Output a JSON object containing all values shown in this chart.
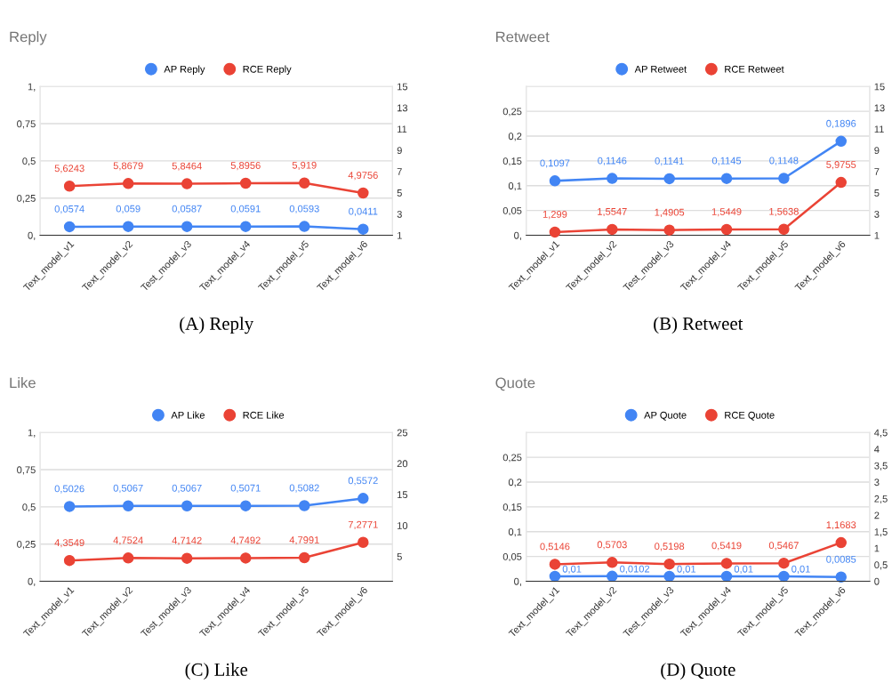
{
  "chart_data": [
    {
      "type": "line",
      "title": "Reply",
      "categories": [
        "Text_model_v1",
        "Text_model_v2",
        "Test_model_v3",
        "Text_model_v4",
        "Text_model_v5",
        "Text_model_v6"
      ],
      "series": [
        {
          "name": "AP Reply",
          "color": "#4285f4",
          "values": [
            0.0574,
            0.059,
            0.0587,
            0.0591,
            0.0593,
            0.0411
          ],
          "value_labels": [
            "0,0574",
            "0,059",
            "0,0587",
            "0,0591",
            "0,0593",
            "0,0411"
          ]
        },
        {
          "name": "RCE Reply",
          "color": "#ea4335",
          "axis": "y2",
          "values": [
            5.6243,
            5.8679,
            5.8464,
            5.8956,
            5.919,
            4.9756
          ],
          "value_labels": [
            "5,6243",
            "5,8679",
            "5,8464",
            "5,8956",
            "5,919",
            "4,9756"
          ]
        }
      ],
      "ylim": [
        0,
        1
      ],
      "yticks": [
        {
          "value": 0,
          "label": "0,"
        },
        {
          "value": 0.25,
          "label": "0,25"
        },
        {
          "value": 0.5,
          "label": "0,5"
        },
        {
          "value": 0.75,
          "label": "0,75"
        },
        {
          "value": 1,
          "label": "1,"
        }
      ],
      "y2lim": [
        1,
        15
      ],
      "y2ticks": [
        1,
        3,
        5,
        7,
        9,
        11,
        13,
        15
      ],
      "grid": "y",
      "legend": "top",
      "marker": "circle",
      "line_style": "solid",
      "annotations": [
        "(A) Reply"
      ]
    },
    {
      "type": "line",
      "title": "Retweet",
      "categories": [
        "Text_model_v1",
        "Text_model_v2",
        "Test_model_v3",
        "Text_model_v4",
        "Text_model_v5",
        "Text_model_v6"
      ],
      "series": [
        {
          "name": "AP Retweet",
          "color": "#4285f4",
          "values": [
            0.1097,
            0.1146,
            0.1141,
            0.1145,
            0.1148,
            0.1896
          ],
          "value_labels": [
            "0,1097",
            "0,1146",
            "0,1141",
            "0,1145",
            "0,1148",
            "0,1896"
          ]
        },
        {
          "name": "RCE Retweet",
          "color": "#ea4335",
          "axis": "y2",
          "values": [
            1.299,
            1.5547,
            1.4905,
            1.5449,
            1.5638,
            5.9755
          ],
          "value_labels": [
            "1,299",
            "1,5547",
            "1,4905",
            "1,5449",
            "1,5638",
            "5,9755"
          ]
        }
      ],
      "ylim": [
        0,
        0.3
      ],
      "yticks": [
        {
          "value": 0,
          "label": "0,"
        },
        {
          "value": 0.05,
          "label": "0,05"
        },
        {
          "value": 0.1,
          "label": "0,1"
        },
        {
          "value": 0.15,
          "label": "0,15"
        },
        {
          "value": 0.2,
          "label": "0,2"
        },
        {
          "value": 0.25,
          "label": "0,25"
        }
      ],
      "y2lim": [
        1,
        15
      ],
      "y2ticks": [
        1,
        3,
        5,
        7,
        9,
        11,
        13,
        15
      ],
      "grid": "y",
      "legend": "top",
      "marker": "circle",
      "line_style": "solid",
      "annotations": [
        "(B) Retweet"
      ]
    },
    {
      "type": "line",
      "title": "Like",
      "categories": [
        "Text_model_v1",
        "Text_model_v2",
        "Test_model_v3",
        "Text_model_v4",
        "Text_model_v5",
        "Text_model_v6"
      ],
      "series": [
        {
          "name": "AP Like",
          "color": "#4285f4",
          "values": [
            0.5026,
            0.5067,
            0.5067,
            0.5071,
            0.5082,
            0.5572
          ],
          "value_labels": [
            "0,5026",
            "0,5067",
            "0,5067",
            "0,5071",
            "0,5082",
            "0,5572"
          ]
        },
        {
          "name": "RCE Like",
          "color": "#ea4335",
          "axis": "y2",
          "values": [
            4.3549,
            4.7524,
            4.7142,
            4.7492,
            4.7991,
            7.2771
          ],
          "value_labels": [
            "4,3549",
            "4,7524",
            "4,7142",
            "4,7492",
            "4,7991",
            "7,2771"
          ]
        }
      ],
      "ylim": [
        0,
        1
      ],
      "yticks": [
        {
          "value": 0,
          "label": "0,"
        },
        {
          "value": 0.25,
          "label": "0,25"
        },
        {
          "value": 0.5,
          "label": "0,5"
        },
        {
          "value": 0.75,
          "label": "0,75"
        },
        {
          "value": 1,
          "label": "1,"
        }
      ],
      "y2lim": [
        1,
        25
      ],
      "y2ticks": [
        5,
        10,
        15,
        20,
        25
      ],
      "grid": "y",
      "legend": "top",
      "marker": "circle",
      "line_style": "solid",
      "annotations": [
        "(C) Like"
      ]
    },
    {
      "type": "line",
      "title": "Quote",
      "categories": [
        "Text_model_v1",
        "Text_model_v2",
        "Test_model_v3",
        "Text_model_v4",
        "Text_model_v5",
        "Text_model_v6"
      ],
      "series": [
        {
          "name": "AP Quote",
          "color": "#4285f4",
          "values": [
            0.01,
            0.0102,
            0.01,
            0.01,
            0.01,
            0.0085
          ],
          "value_labels": [
            "0,01",
            "0,0102",
            "0,01",
            "0,01",
            "0,01",
            "0,0085"
          ]
        },
        {
          "name": "RCE Quote",
          "color": "#ea4335",
          "axis": "y2",
          "values": [
            0.5146,
            0.5703,
            0.5198,
            0.5419,
            0.5467,
            1.1683
          ],
          "value_labels": [
            "0,5146",
            "0,5703",
            "0,5198",
            "0,5419",
            "0,5467",
            "1,1683"
          ]
        }
      ],
      "ylim": [
        0,
        0.3
      ],
      "yticks": [
        {
          "value": 0,
          "label": "0,"
        },
        {
          "value": 0.05,
          "label": "0,05"
        },
        {
          "value": 0.1,
          "label": "0,1"
        },
        {
          "value": 0.15,
          "label": "0,15"
        },
        {
          "value": 0.2,
          "label": "0,2"
        },
        {
          "value": 0.25,
          "label": "0,25"
        }
      ],
      "y2lim": [
        0,
        4.5
      ],
      "y2ticks": [
        0,
        {
          "value": 0.5,
          "label": "0,5"
        },
        1,
        {
          "value": 1.5,
          "label": "1,5"
        },
        2,
        {
          "value": 2.5,
          "label": "2,5"
        },
        3,
        {
          "value": 3.5,
          "label": "3,5"
        },
        4,
        {
          "value": 4.5,
          "label": "4,5"
        }
      ],
      "grid": "y",
      "legend": "top",
      "marker": "circle",
      "line_style": "solid",
      "annotations": [
        "(D) Quote"
      ]
    }
  ]
}
